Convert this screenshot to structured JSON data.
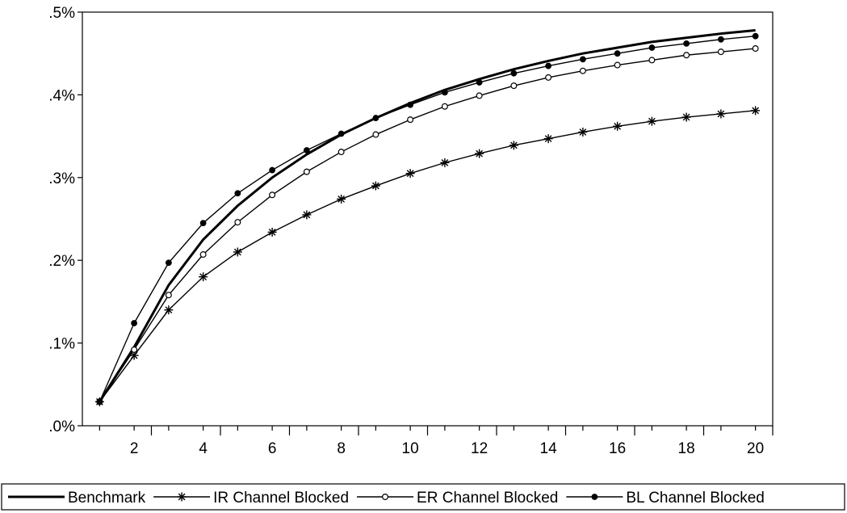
{
  "chart_data": {
    "type": "line",
    "x": [
      1,
      2,
      3,
      4,
      5,
      6,
      7,
      8,
      9,
      10,
      11,
      12,
      13,
      14,
      15,
      16,
      17,
      18,
      19,
      20
    ],
    "xlim": [
      0.5,
      20.5
    ],
    "ylim": [
      0.0,
      0.5
    ],
    "y_ticks": [
      0.0,
      0.1,
      0.2,
      0.3,
      0.4,
      0.5
    ],
    "y_tick_labels": [
      ".0%",
      ".1%",
      ".2%",
      ".3%",
      ".4%",
      ".5%"
    ],
    "x_ticks": [
      2,
      4,
      6,
      8,
      10,
      12,
      14,
      16,
      18,
      20
    ],
    "x_tick_labels": [
      "2",
      "4",
      "6",
      "8",
      "10",
      "12",
      "14",
      "16",
      "18",
      "20"
    ],
    "grid": false,
    "legend_position": "bottom",
    "series": [
      {
        "name": "Benchmark",
        "marker": "none",
        "values": [
          0.029,
          0.095,
          0.17,
          0.225,
          0.266,
          0.3,
          0.328,
          0.352,
          0.372,
          0.39,
          0.406,
          0.419,
          0.431,
          0.441,
          0.45,
          0.457,
          0.464,
          0.469,
          0.474,
          0.478
        ]
      },
      {
        "name": "IR Channel Blocked",
        "marker": "asterisk",
        "values": [
          0.029,
          0.085,
          0.14,
          0.18,
          0.21,
          0.234,
          0.255,
          0.274,
          0.29,
          0.305,
          0.318,
          0.329,
          0.339,
          0.347,
          0.355,
          0.362,
          0.368,
          0.373,
          0.377,
          0.381
        ]
      },
      {
        "name": "ER Channel Blocked",
        "marker": "open-circle",
        "values": [
          0.029,
          0.092,
          0.158,
          0.207,
          0.246,
          0.279,
          0.307,
          0.331,
          0.352,
          0.37,
          0.386,
          0.399,
          0.411,
          0.421,
          0.429,
          0.436,
          0.442,
          0.448,
          0.452,
          0.456
        ]
      },
      {
        "name": "BL Channel Blocked",
        "marker": "filled-circle",
        "values": [
          0.029,
          0.124,
          0.197,
          0.245,
          0.281,
          0.309,
          0.333,
          0.353,
          0.372,
          0.388,
          0.403,
          0.415,
          0.426,
          0.435,
          0.443,
          0.45,
          0.457,
          0.462,
          0.467,
          0.471
        ]
      }
    ]
  }
}
